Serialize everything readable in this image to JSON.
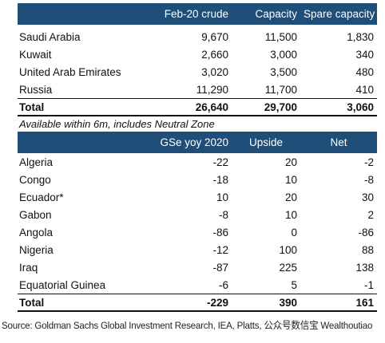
{
  "table1": {
    "headers": [
      "",
      "Feb-20 crude",
      "Capacity",
      "Spare capacity"
    ],
    "rows": [
      {
        "name": "Saudi Arabia",
        "v1": "9,670",
        "v2": "11,500",
        "v3": "1,830"
      },
      {
        "name": "Kuwait",
        "v1": "2,660",
        "v2": "3,000",
        "v3": "340"
      },
      {
        "name": "United Arab Emirates",
        "v1": "3,020",
        "v2": "3,500",
        "v3": "480"
      },
      {
        "name": "Russia",
        "v1": "11,290",
        "v2": "11,700",
        "v3": "410"
      }
    ],
    "total": {
      "name": "Total",
      "v1": "26,640",
      "v2": "29,700",
      "v3": "3,060"
    },
    "note": "Available within 6m, includes Neutral Zone"
  },
  "table2": {
    "headers": [
      "",
      "GSe yoy 2020",
      "Upside",
      "Net"
    ],
    "rows": [
      {
        "name": "Algeria",
        "v1": "-22",
        "v2": "20",
        "v3": "-2"
      },
      {
        "name": "Congo",
        "v1": "-18",
        "v2": "10",
        "v3": "-8"
      },
      {
        "name": "Ecuador*",
        "v1": "10",
        "v2": "20",
        "v3": "30"
      },
      {
        "name": "Gabon",
        "v1": "-8",
        "v2": "10",
        "v3": "2"
      },
      {
        "name": "Angola",
        "v1": "-86",
        "v2": "0",
        "v3": "-86"
      },
      {
        "name": "Nigeria",
        "v1": "-12",
        "v2": "100",
        "v3": "88"
      },
      {
        "name": "Iraq",
        "v1": "-87",
        "v2": "225",
        "v3": "138"
      },
      {
        "name": "Equatorial Guinea",
        "v1": "-6",
        "v2": "5",
        "v3": "-1"
      }
    ],
    "total": {
      "name": "Total",
      "v1": "-229",
      "v2": "390",
      "v3": "161"
    }
  },
  "source": "Source: Goldman Sachs Global Investment Research, IEA, Platts, 公众号数信宝 Wealthoutiao",
  "colors": {
    "header_bg": "#1f4e79",
    "header_text": "#ffffff"
  }
}
